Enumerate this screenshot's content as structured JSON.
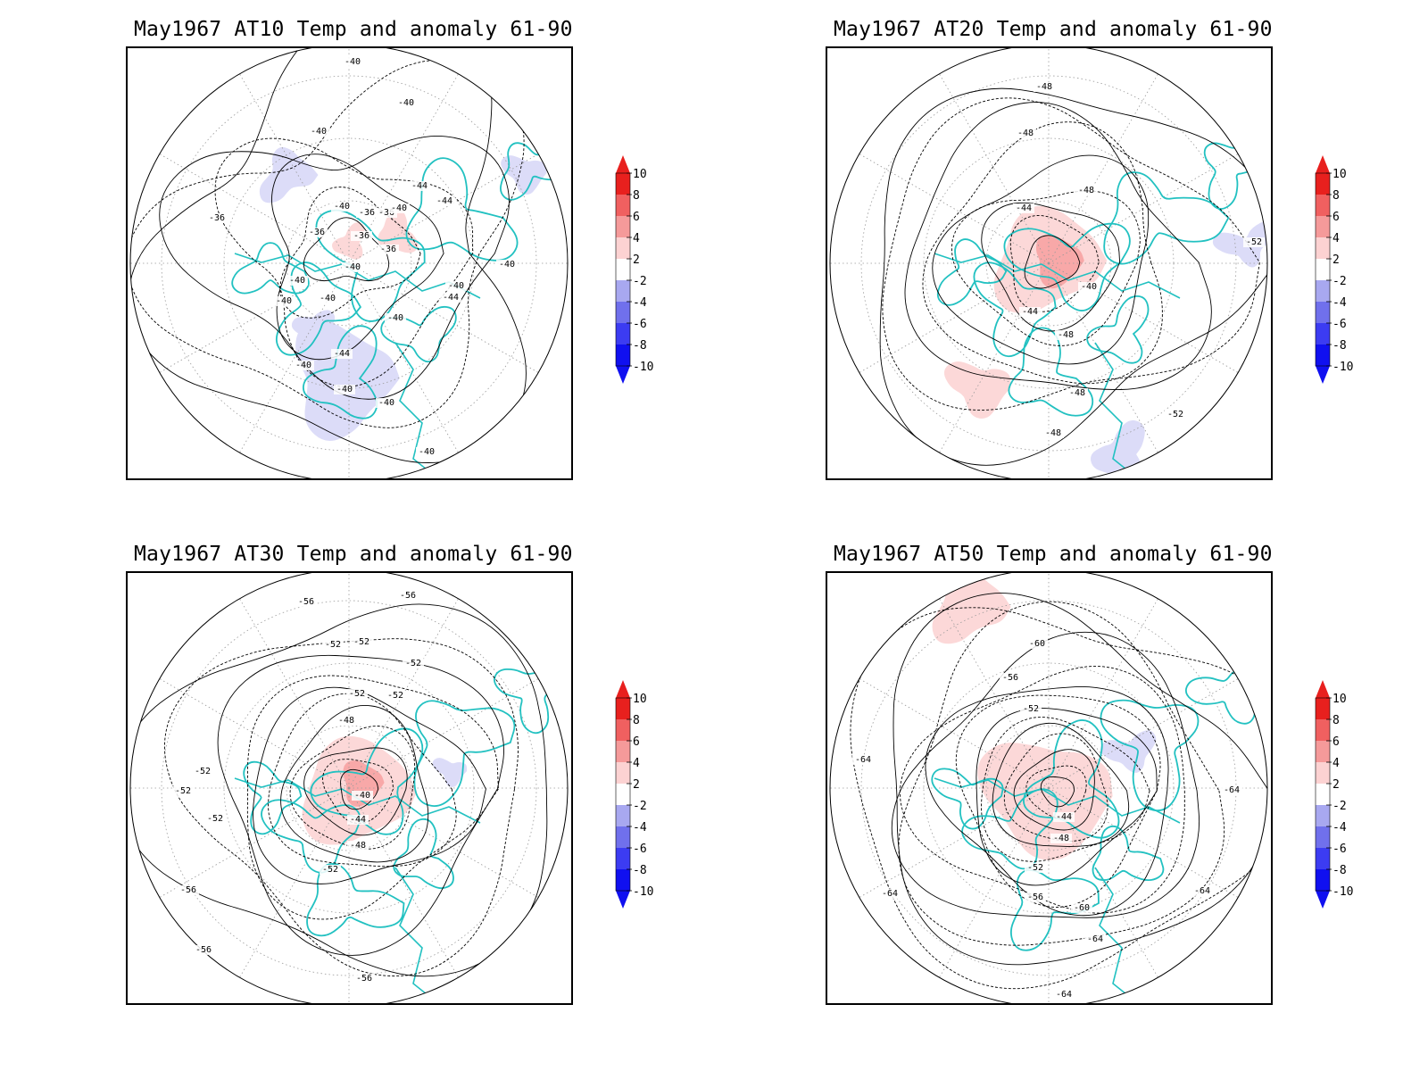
{
  "panels": [
    {
      "title": "May1967 AT10 Temp and anomaly 61-90",
      "contour_labels": [
        "-40",
        "-40",
        "-40",
        "-44",
        "-44",
        "-40",
        "-36",
        "-36",
        "-36",
        "-40",
        "-36",
        "-36",
        "-36",
        "-40",
        "-40",
        "-40",
        "-44",
        "-40",
        "-40",
        "-40",
        "-40",
        "-40",
        "-40",
        "-40",
        "-44",
        "-40"
      ],
      "anomaly_patches": [
        {
          "sign": "negative",
          "level": 2
        },
        {
          "sign": "negative",
          "level": 2
        },
        {
          "sign": "negative",
          "level": 2
        },
        {
          "sign": "negative",
          "level": 2
        },
        {
          "sign": "positive",
          "level": 2
        },
        {
          "sign": "positive",
          "level": 2
        }
      ]
    },
    {
      "title": "May1967 AT20 Temp and anomaly 61-90",
      "contour_labels": [
        "-48",
        "-48",
        "-48",
        "-44",
        "-40",
        "-44",
        "-48",
        "-48",
        "-48",
        "-52",
        "-52"
      ],
      "anomaly_patches": [
        {
          "sign": "positive",
          "level": 2
        },
        {
          "sign": "positive",
          "level": 4
        },
        {
          "sign": "positive",
          "level": 2
        },
        {
          "sign": "negative",
          "level": 2
        },
        {
          "sign": "negative",
          "level": 2
        }
      ]
    },
    {
      "title": "May1967 AT30 Temp and anomaly 61-90",
      "contour_labels": [
        "-56",
        "-56",
        "-52",
        "-52",
        "-52",
        "-52",
        "-52",
        "-48",
        "-40",
        "-44",
        "-48",
        "-52",
        "-52",
        "-52",
        "-52",
        "-56",
        "-56",
        "-56"
      ],
      "anomaly_patches": [
        {
          "sign": "positive",
          "level": 2
        },
        {
          "sign": "positive",
          "level": 4
        },
        {
          "sign": "negative",
          "level": 2
        }
      ]
    },
    {
      "title": "May1967 AT50 Temp and anomaly 61-90",
      "contour_labels": [
        "-60",
        "-56",
        "-52",
        "-44",
        "-48",
        "-52",
        "-56",
        "-60",
        "-64",
        "-64",
        "-64",
        "-64",
        "-64",
        "-64"
      ],
      "anomaly_patches": [
        {
          "sign": "positive",
          "level": 2
        },
        {
          "sign": "positive",
          "level": 4
        },
        {
          "sign": "positive",
          "level": 2
        },
        {
          "sign": "negative",
          "level": 2
        }
      ]
    }
  ],
  "legend": {
    "levels": [
      "10",
      "8",
      "6",
      "4",
      "2",
      "-2",
      "-4",
      "-6",
      "-8",
      "-10"
    ],
    "colors": [
      "#e8201e",
      "#f06060",
      "#f59a9a",
      "#fcd2d2",
      "#ffffff",
      "#d8d8f8",
      "#a8a8f0",
      "#7070ec",
      "#3c3cf2",
      "#1010f0"
    ],
    "top_arrow_color": "#e8201e",
    "bottom_arrow_color": "#1010f0"
  },
  "colors": {
    "coastline": "#22c1c1",
    "contour": "#000000",
    "grid": "#9a9a9a",
    "positive_light": "#fcd8d8",
    "positive_mid": "#f8a8a8",
    "negative_light": "#dcdcf8"
  }
}
